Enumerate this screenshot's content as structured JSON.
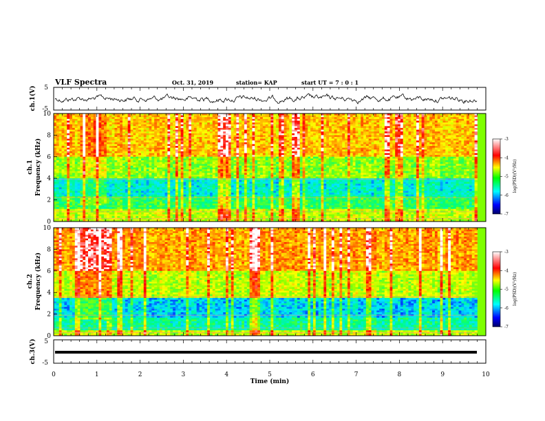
{
  "header": {
    "title": "VLF Spectra",
    "date": "Oct. 31, 2019",
    "station": "station= KAP",
    "start": "start  UT  =   7 : 0  : 1"
  },
  "chart_data": [
    {
      "type": "line",
      "panel": "waveform-ch1",
      "ylabel": "ch.1(V)",
      "ylim": [
        -5,
        5
      ],
      "yticks": [
        "5",
        "-5"
      ],
      "color": "#000000"
    },
    {
      "type": "heatmap",
      "panel": "spectrogram-ch1",
      "ylabel": "ch.1  Frequency  (kHz)",
      "ylabel_lines": [
        "ch.1",
        "Frequency  (kHz)"
      ],
      "ylim": [
        0,
        10
      ],
      "yticks": [
        "0",
        "2",
        "4",
        "6",
        "8",
        "10"
      ]
    },
    {
      "type": "heatmap",
      "panel": "spectrogram-ch2",
      "ylabel": "ch.2  Frequency  (kHz)",
      "ylabel_lines": [
        "ch.2",
        "Frequency  (kHz)"
      ],
      "ylim": [
        0,
        10
      ],
      "yticks": [
        "0",
        "2",
        "4",
        "6",
        "8",
        "10"
      ]
    },
    {
      "type": "line",
      "panel": "waveform-ch3",
      "ylabel": "ch.3(V)",
      "ylim": [
        -5,
        5
      ],
      "yticks": [
        "5",
        "-5"
      ],
      "values": [
        -1,
        -1
      ],
      "x": [
        0,
        9.8
      ],
      "color": "#000000"
    }
  ],
  "time_axis": {
    "xlabel": "Time  (min)",
    "xlim": [
      0,
      10
    ],
    "ticks": [
      "0",
      "1",
      "2",
      "3",
      "4",
      "5",
      "6",
      "7",
      "8",
      "9",
      "10"
    ]
  },
  "colorbar": {
    "label": "log(PSD)(V²/Hz)",
    "range": [
      -7,
      -3
    ],
    "ticks": [
      "-3",
      "-4",
      "-5",
      "-6",
      "-7"
    ],
    "colors": [
      "#000088",
      "#0000ff",
      "#00ffff",
      "#00ff00",
      "#ffff00",
      "#ff0000",
      "#ffffff"
    ]
  }
}
